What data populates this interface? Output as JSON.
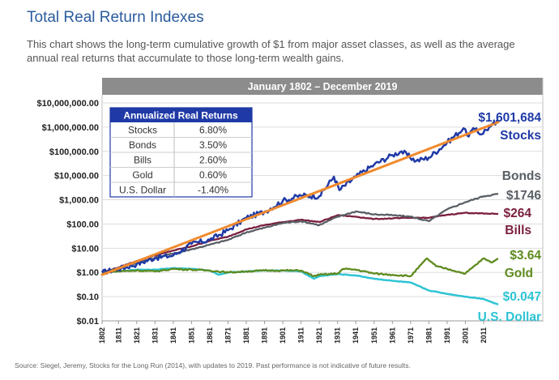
{
  "header": {
    "title": "Total Real Return Indexes",
    "subtitle": "This chart shows the long-term cumulative growth of $1 from major asset classes, as well as the average annual real returns that accumulate to those long-term wealth gains."
  },
  "footer": {
    "source": "Source: Siegel, Jeremy, Stocks for the Long Run (2014), with updates to 2019. Past performance is not indicative of future results."
  },
  "chart_data": {
    "type": "line",
    "title": "January 1802 – December 2019",
    "y_scale": "log",
    "ylim": [
      0.01,
      10000000
    ],
    "xlim": [
      1802,
      2019
    ],
    "y_ticks": [
      {
        "value": 10000000,
        "label": "$10,000,000.00"
      },
      {
        "value": 1000000,
        "label": "$1,000,000.00"
      },
      {
        "value": 100000,
        "label": "$100,000.00"
      },
      {
        "value": 10000,
        "label": "$10,000.00"
      },
      {
        "value": 1000,
        "label": "$1,000.00"
      },
      {
        "value": 100,
        "label": "$100.00"
      },
      {
        "value": 10,
        "label": "$10.00"
      },
      {
        "value": 1,
        "label": "$1.00"
      },
      {
        "value": 0.1,
        "label": "$0.10"
      },
      {
        "value": 0.01,
        "label": "$0.01"
      }
    ],
    "x_ticks": [
      "1802",
      "1811",
      "1821",
      "1831",
      "1841",
      "1851",
      "1861",
      "1871",
      "1881",
      "1891",
      "1901",
      "1911",
      "1921",
      "1931",
      "1941",
      "1951",
      "1961",
      "1971",
      "1981",
      "1991",
      "2001",
      "2011"
    ],
    "series": [
      {
        "name": "Stocks",
        "color": "#1f3aa6",
        "end_label": "$1,601,684",
        "points": [
          [
            1802,
            1
          ],
          [
            1811,
            1.4
          ],
          [
            1821,
            2.2
          ],
          [
            1831,
            4
          ],
          [
            1841,
            5
          ],
          [
            1851,
            15
          ],
          [
            1861,
            22
          ],
          [
            1871,
            55
          ],
          [
            1881,
            180
          ],
          [
            1891,
            320
          ],
          [
            1901,
            900
          ],
          [
            1911,
            1500
          ],
          [
            1921,
            1400
          ],
          [
            1929,
            9000
          ],
          [
            1932,
            2500
          ],
          [
            1941,
            9000
          ],
          [
            1951,
            28000
          ],
          [
            1961,
            70000
          ],
          [
            1966,
            100000
          ],
          [
            1974,
            40000
          ],
          [
            1981,
            55000
          ],
          [
            1991,
            230000
          ],
          [
            2000,
            900000
          ],
          [
            2002,
            450000
          ],
          [
            2007,
            900000
          ],
          [
            2009,
            500000
          ],
          [
            2015,
            1100000
          ],
          [
            2019,
            1601684
          ]
        ]
      },
      {
        "name": "Bonds",
        "color": "#5a5f66",
        "end_label": "$1746",
        "points": [
          [
            1802,
            1
          ],
          [
            1811,
            1.5
          ],
          [
            1821,
            2.5
          ],
          [
            1831,
            4
          ],
          [
            1841,
            6
          ],
          [
            1851,
            9
          ],
          [
            1861,
            14
          ],
          [
            1871,
            22
          ],
          [
            1881,
            45
          ],
          [
            1891,
            70
          ],
          [
            1901,
            110
          ],
          [
            1911,
            130
          ],
          [
            1921,
            90
          ],
          [
            1931,
            200
          ],
          [
            1941,
            330
          ],
          [
            1951,
            250
          ],
          [
            1961,
            230
          ],
          [
            1971,
            200
          ],
          [
            1981,
            130
          ],
          [
            1991,
            400
          ],
          [
            2001,
            800
          ],
          [
            2011,
            1400
          ],
          [
            2019,
            1746
          ]
        ]
      },
      {
        "name": "Bills",
        "color": "#7a1f3d",
        "end_label": "$264",
        "points": [
          [
            1802,
            1
          ],
          [
            1811,
            1.6
          ],
          [
            1821,
            3
          ],
          [
            1831,
            5
          ],
          [
            1841,
            8
          ],
          [
            1851,
            12
          ],
          [
            1861,
            20
          ],
          [
            1871,
            30
          ],
          [
            1881,
            60
          ],
          [
            1891,
            90
          ],
          [
            1901,
            120
          ],
          [
            1911,
            150
          ],
          [
            1921,
            120
          ],
          [
            1931,
            230
          ],
          [
            1941,
            200
          ],
          [
            1951,
            160
          ],
          [
            1961,
            170
          ],
          [
            1971,
            180
          ],
          [
            1981,
            180
          ],
          [
            1991,
            240
          ],
          [
            2001,
            290
          ],
          [
            2011,
            270
          ],
          [
            2019,
            264
          ]
        ]
      },
      {
        "name": "Gold",
        "color": "#5e8a1e",
        "end_label": "$3.64",
        "points": [
          [
            1802,
            1
          ],
          [
            1811,
            1.1
          ],
          [
            1821,
            1.2
          ],
          [
            1831,
            1.1
          ],
          [
            1841,
            1.4
          ],
          [
            1851,
            1.3
          ],
          [
            1861,
            1.2
          ],
          [
            1871,
            1
          ],
          [
            1881,
            1.1
          ],
          [
            1891,
            1.2
          ],
          [
            1901,
            1.2
          ],
          [
            1911,
            1.2
          ],
          [
            1918,
            0.7
          ],
          [
            1921,
            0.8
          ],
          [
            1931,
            0.9
          ],
          [
            1934,
            1.4
          ],
          [
            1941,
            1.3
          ],
          [
            1951,
            0.9
          ],
          [
            1961,
            0.8
          ],
          [
            1971,
            0.7
          ],
          [
            1980,
            3.8
          ],
          [
            1985,
            1.8
          ],
          [
            1991,
            1.4
          ],
          [
            2001,
            0.9
          ],
          [
            2011,
            3.8
          ],
          [
            2015,
            2.6
          ],
          [
            2019,
            3.64
          ]
        ]
      },
      {
        "name": "U.S. Dollar",
        "color": "#2ec4d4",
        "end_label": "$0.047",
        "points": [
          [
            1802,
            1
          ],
          [
            1811,
            1.1
          ],
          [
            1821,
            1.3
          ],
          [
            1831,
            1.3
          ],
          [
            1841,
            1.5
          ],
          [
            1851,
            1.4
          ],
          [
            1861,
            1.2
          ],
          [
            1866,
            0.8
          ],
          [
            1871,
            1
          ],
          [
            1881,
            1.1
          ],
          [
            1891,
            1.2
          ],
          [
            1901,
            1.2
          ],
          [
            1911,
            1.1
          ],
          [
            1918,
            0.55
          ],
          [
            1921,
            0.7
          ],
          [
            1931,
            0.85
          ],
          [
            1941,
            0.75
          ],
          [
            1951,
            0.55
          ],
          [
            1961,
            0.45
          ],
          [
            1971,
            0.38
          ],
          [
            1981,
            0.18
          ],
          [
            1991,
            0.13
          ],
          [
            2001,
            0.1
          ],
          [
            2011,
            0.08
          ],
          [
            2019,
            0.047
          ]
        ]
      }
    ],
    "trend": {
      "name": "Stocks trend",
      "color": "#f08a2e",
      "points": [
        [
          1802,
          0.8
        ],
        [
          2019,
          1601684
        ]
      ]
    },
    "series_labels": [
      "Stocks",
      "Bonds",
      "Bills",
      "Gold",
      "U.S. Dollar"
    ],
    "table": {
      "title": "Annualized Real Returns",
      "rows": [
        {
          "asset": "Stocks",
          "value": "6.80%"
        },
        {
          "asset": "Bonds",
          "value": "3.50%"
        },
        {
          "asset": "Bills",
          "value": "2.60%"
        },
        {
          "asset": "Gold",
          "value": "0.60%"
        },
        {
          "asset": "U.S. Dollar",
          "value": "-1.40%"
        }
      ]
    }
  }
}
